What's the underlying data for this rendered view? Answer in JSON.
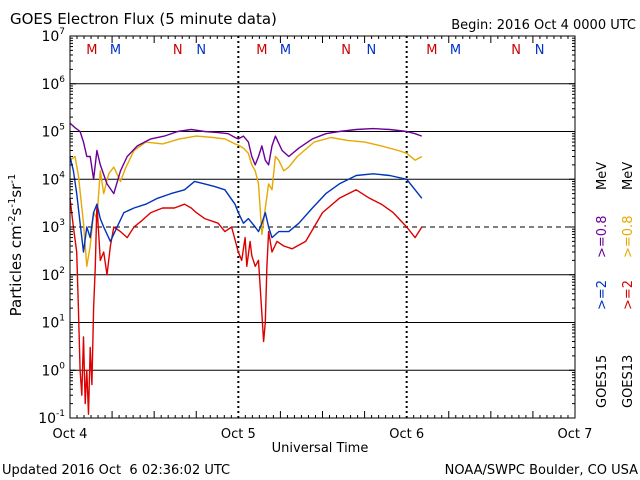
{
  "chart_data": {
    "type": "line",
    "title": "GOES Electron Flux (5 minute data)",
    "begin_label": "Begin: 2016 Oct 4 0000 UTC",
    "xlabel": "Universal Time",
    "ylabel_base": "Particles cm",
    "ylabel_exp1": "-2",
    "ylabel_mid1": "s",
    "ylabel_exp2": "-1",
    "ylabel_mid2": "sr",
    "ylabel_exp3": "-1",
    "x_ticks": [
      "Oct 4",
      "Oct 5",
      "Oct 6",
      "Oct 7"
    ],
    "xlim_days": [
      0,
      3
    ],
    "y_scale": "log",
    "ylim": [
      0.1,
      10000000
    ],
    "y_ticks": [
      {
        "base": "10",
        "exp": "-1",
        "value": 0.1
      },
      {
        "base": "10",
        "exp": "0",
        "value": 1
      },
      {
        "base": "10",
        "exp": "1",
        "value": 10
      },
      {
        "base": "10",
        "exp": "2",
        "value": 100
      },
      {
        "base": "10",
        "exp": "3",
        "value": 1000
      },
      {
        "base": "10",
        "exp": "4",
        "value": 10000
      },
      {
        "base": "10",
        "exp": "5",
        "value": 100000
      },
      {
        "base": "10",
        "exp": "6",
        "value": 1000000
      },
      {
        "base": "10",
        "exp": "7",
        "value": 10000000
      }
    ],
    "threshold_line": 1000,
    "markers": [
      {
        "label": "M",
        "day": 0.13,
        "color": "#cc0000"
      },
      {
        "label": "M",
        "day": 0.27,
        "color": "#0033cc"
      },
      {
        "label": "N",
        "day": 0.64,
        "color": "#cc0000"
      },
      {
        "label": "N",
        "day": 0.78,
        "color": "#0033cc"
      },
      {
        "label": "M",
        "day": 1.14,
        "color": "#cc0000"
      },
      {
        "label": "M",
        "day": 1.28,
        "color": "#0033cc"
      },
      {
        "label": "N",
        "day": 1.64,
        "color": "#cc0000"
      },
      {
        "label": "N",
        "day": 1.79,
        "color": "#0033cc"
      },
      {
        "label": "M",
        "day": 2.15,
        "color": "#cc0000"
      },
      {
        "label": "M",
        "day": 2.29,
        "color": "#0033cc"
      },
      {
        "label": "N",
        "day": 2.65,
        "color": "#cc0000"
      },
      {
        "label": "N",
        "day": 2.79,
        "color": "#0033cc"
      }
    ],
    "legend": {
      "goes13_label": "GOES13",
      "goes15_label": "GOES15",
      "ge2_label": ">=2",
      "ge08_label": ">=0.8",
      "unit_label": "MeV"
    },
    "series": [
      {
        "name": "GOES13 >=0.8 MeV",
        "color": "#e8a800",
        "points": [
          [
            0.0,
            25000
          ],
          [
            0.03,
            30000
          ],
          [
            0.05,
            12000
          ],
          [
            0.08,
            1200
          ],
          [
            0.1,
            150
          ],
          [
            0.12,
            400
          ],
          [
            0.14,
            2000
          ],
          [
            0.16,
            1500
          ],
          [
            0.18,
            15000
          ],
          [
            0.2,
            5000
          ],
          [
            0.23,
            13000
          ],
          [
            0.26,
            18000
          ],
          [
            0.3,
            9000
          ],
          [
            0.33,
            17000
          ],
          [
            0.38,
            40000
          ],
          [
            0.45,
            60000
          ],
          [
            0.55,
            55000
          ],
          [
            0.65,
            70000
          ],
          [
            0.75,
            80000
          ],
          [
            0.85,
            75000
          ],
          [
            0.92,
            70000
          ],
          [
            0.98,
            55000
          ],
          [
            1.0,
            52000
          ],
          [
            1.03,
            45000
          ],
          [
            1.06,
            35000
          ],
          [
            1.08,
            20000
          ],
          [
            1.1,
            15000
          ],
          [
            1.12,
            8000
          ],
          [
            1.14,
            700
          ],
          [
            1.16,
            2500
          ],
          [
            1.18,
            8000
          ],
          [
            1.2,
            6000
          ],
          [
            1.22,
            30000
          ],
          [
            1.24,
            25000
          ],
          [
            1.27,
            15000
          ],
          [
            1.3,
            18000
          ],
          [
            1.35,
            30000
          ],
          [
            1.45,
            60000
          ],
          [
            1.55,
            75000
          ],
          [
            1.65,
            65000
          ],
          [
            1.75,
            60000
          ],
          [
            1.85,
            50000
          ],
          [
            1.95,
            40000
          ],
          [
            2.0,
            35000
          ],
          [
            2.05,
            25000
          ],
          [
            2.09,
            30000
          ]
        ]
      },
      {
        "name": "GOES13 >=2 MeV",
        "color": "#dd0000",
        "points": [
          [
            0.0,
            4000
          ],
          [
            0.02,
            1000
          ],
          [
            0.04,
            300
          ],
          [
            0.05,
            20
          ],
          [
            0.06,
            1
          ],
          [
            0.07,
            0.3
          ],
          [
            0.08,
            5
          ],
          [
            0.09,
            0.2
          ],
          [
            0.1,
            1
          ],
          [
            0.11,
            0.12
          ],
          [
            0.12,
            3
          ],
          [
            0.13,
            0.5
          ],
          [
            0.14,
            20
          ],
          [
            0.15,
            150
          ],
          [
            0.16,
            3000
          ],
          [
            0.18,
            200
          ],
          [
            0.2,
            300
          ],
          [
            0.22,
            100
          ],
          [
            0.24,
            400
          ],
          [
            0.26,
            1000
          ],
          [
            0.3,
            800
          ],
          [
            0.34,
            600
          ],
          [
            0.38,
            1000
          ],
          [
            0.42,
            1300
          ],
          [
            0.48,
            2000
          ],
          [
            0.55,
            2500
          ],
          [
            0.62,
            2500
          ],
          [
            0.68,
            3000
          ],
          [
            0.72,
            2500
          ],
          [
            0.75,
            2000
          ],
          [
            0.8,
            1500
          ],
          [
            0.88,
            1200
          ],
          [
            0.92,
            800
          ],
          [
            0.96,
            1000
          ],
          [
            0.99,
            400
          ],
          [
            1.0,
            300
          ],
          [
            1.02,
            200
          ],
          [
            1.04,
            600
          ],
          [
            1.05,
            150
          ],
          [
            1.07,
            500
          ],
          [
            1.08,
            250
          ],
          [
            1.1,
            150
          ],
          [
            1.12,
            200
          ],
          [
            1.14,
            15
          ],
          [
            1.15,
            4
          ],
          [
            1.16,
            10
          ],
          [
            1.17,
            150
          ],
          [
            1.18,
            800
          ],
          [
            1.2,
            300
          ],
          [
            1.23,
            500
          ],
          [
            1.27,
            400
          ],
          [
            1.32,
            350
          ],
          [
            1.4,
            500
          ],
          [
            1.5,
            2000
          ],
          [
            1.6,
            4000
          ],
          [
            1.7,
            6000
          ],
          [
            1.78,
            4000
          ],
          [
            1.85,
            3000
          ],
          [
            1.92,
            2000
          ],
          [
            2.0,
            1000
          ],
          [
            2.05,
            600
          ],
          [
            2.09,
            1000
          ]
        ]
      },
      {
        "name": "GOES15 >=0.8 MeV",
        "color": "#6a0099",
        "points": [
          [
            0.0,
            150000
          ],
          [
            0.03,
            120000
          ],
          [
            0.06,
            100000
          ],
          [
            0.08,
            60000
          ],
          [
            0.1,
            30000
          ],
          [
            0.12,
            30000
          ],
          [
            0.14,
            10000
          ],
          [
            0.16,
            40000
          ],
          [
            0.18,
            20000
          ],
          [
            0.22,
            8000
          ],
          [
            0.26,
            5000
          ],
          [
            0.3,
            15000
          ],
          [
            0.34,
            30000
          ],
          [
            0.4,
            50000
          ],
          [
            0.48,
            70000
          ],
          [
            0.56,
            80000
          ],
          [
            0.64,
            100000
          ],
          [
            0.72,
            110000
          ],
          [
            0.8,
            100000
          ],
          [
            0.88,
            95000
          ],
          [
            0.94,
            90000
          ],
          [
            0.98,
            75000
          ],
          [
            1.0,
            70000
          ],
          [
            1.03,
            80000
          ],
          [
            1.06,
            60000
          ],
          [
            1.08,
            30000
          ],
          [
            1.1,
            20000
          ],
          [
            1.12,
            30000
          ],
          [
            1.14,
            50000
          ],
          [
            1.16,
            25000
          ],
          [
            1.18,
            20000
          ],
          [
            1.2,
            50000
          ],
          [
            1.22,
            80000
          ],
          [
            1.26,
            40000
          ],
          [
            1.3,
            30000
          ],
          [
            1.36,
            45000
          ],
          [
            1.44,
            70000
          ],
          [
            1.52,
            90000
          ],
          [
            1.6,
            100000
          ],
          [
            1.7,
            110000
          ],
          [
            1.8,
            115000
          ],
          [
            1.9,
            110000
          ],
          [
            2.0,
            100000
          ],
          [
            2.05,
            90000
          ],
          [
            2.09,
            80000
          ]
        ]
      },
      {
        "name": "GOES15 >=2 MeV",
        "color": "#0033bb",
        "points": [
          [
            0.0,
            30000
          ],
          [
            0.02,
            15000
          ],
          [
            0.04,
            5000
          ],
          [
            0.06,
            1200
          ],
          [
            0.08,
            300
          ],
          [
            0.1,
            1000
          ],
          [
            0.12,
            600
          ],
          [
            0.14,
            2000
          ],
          [
            0.16,
            3000
          ],
          [
            0.18,
            1500
          ],
          [
            0.2,
            1000
          ],
          [
            0.24,
            500
          ],
          [
            0.28,
            1000
          ],
          [
            0.32,
            2000
          ],
          [
            0.38,
            2500
          ],
          [
            0.45,
            3000
          ],
          [
            0.52,
            4000
          ],
          [
            0.6,
            5000
          ],
          [
            0.68,
            6000
          ],
          [
            0.74,
            9000
          ],
          [
            0.8,
            8000
          ],
          [
            0.86,
            7000
          ],
          [
            0.92,
            6000
          ],
          [
            0.98,
            3000
          ],
          [
            1.0,
            2000
          ],
          [
            1.03,
            1200
          ],
          [
            1.06,
            1500
          ],
          [
            1.1,
            1000
          ],
          [
            1.12,
            800
          ],
          [
            1.14,
            1200
          ],
          [
            1.16,
            2000
          ],
          [
            1.18,
            1000
          ],
          [
            1.2,
            600
          ],
          [
            1.24,
            800
          ],
          [
            1.3,
            800
          ],
          [
            1.36,
            1200
          ],
          [
            1.44,
            2500
          ],
          [
            1.52,
            5000
          ],
          [
            1.6,
            8000
          ],
          [
            1.7,
            12000
          ],
          [
            1.8,
            13000
          ],
          [
            1.9,
            12000
          ],
          [
            2.0,
            10000
          ],
          [
            2.05,
            6000
          ],
          [
            2.09,
            4000
          ]
        ]
      }
    ]
  },
  "footer": {
    "updated": "Updated 2016 Oct  6 02:36:02 UTC",
    "source": "NOAA/SWPC Boulder, CO USA"
  }
}
